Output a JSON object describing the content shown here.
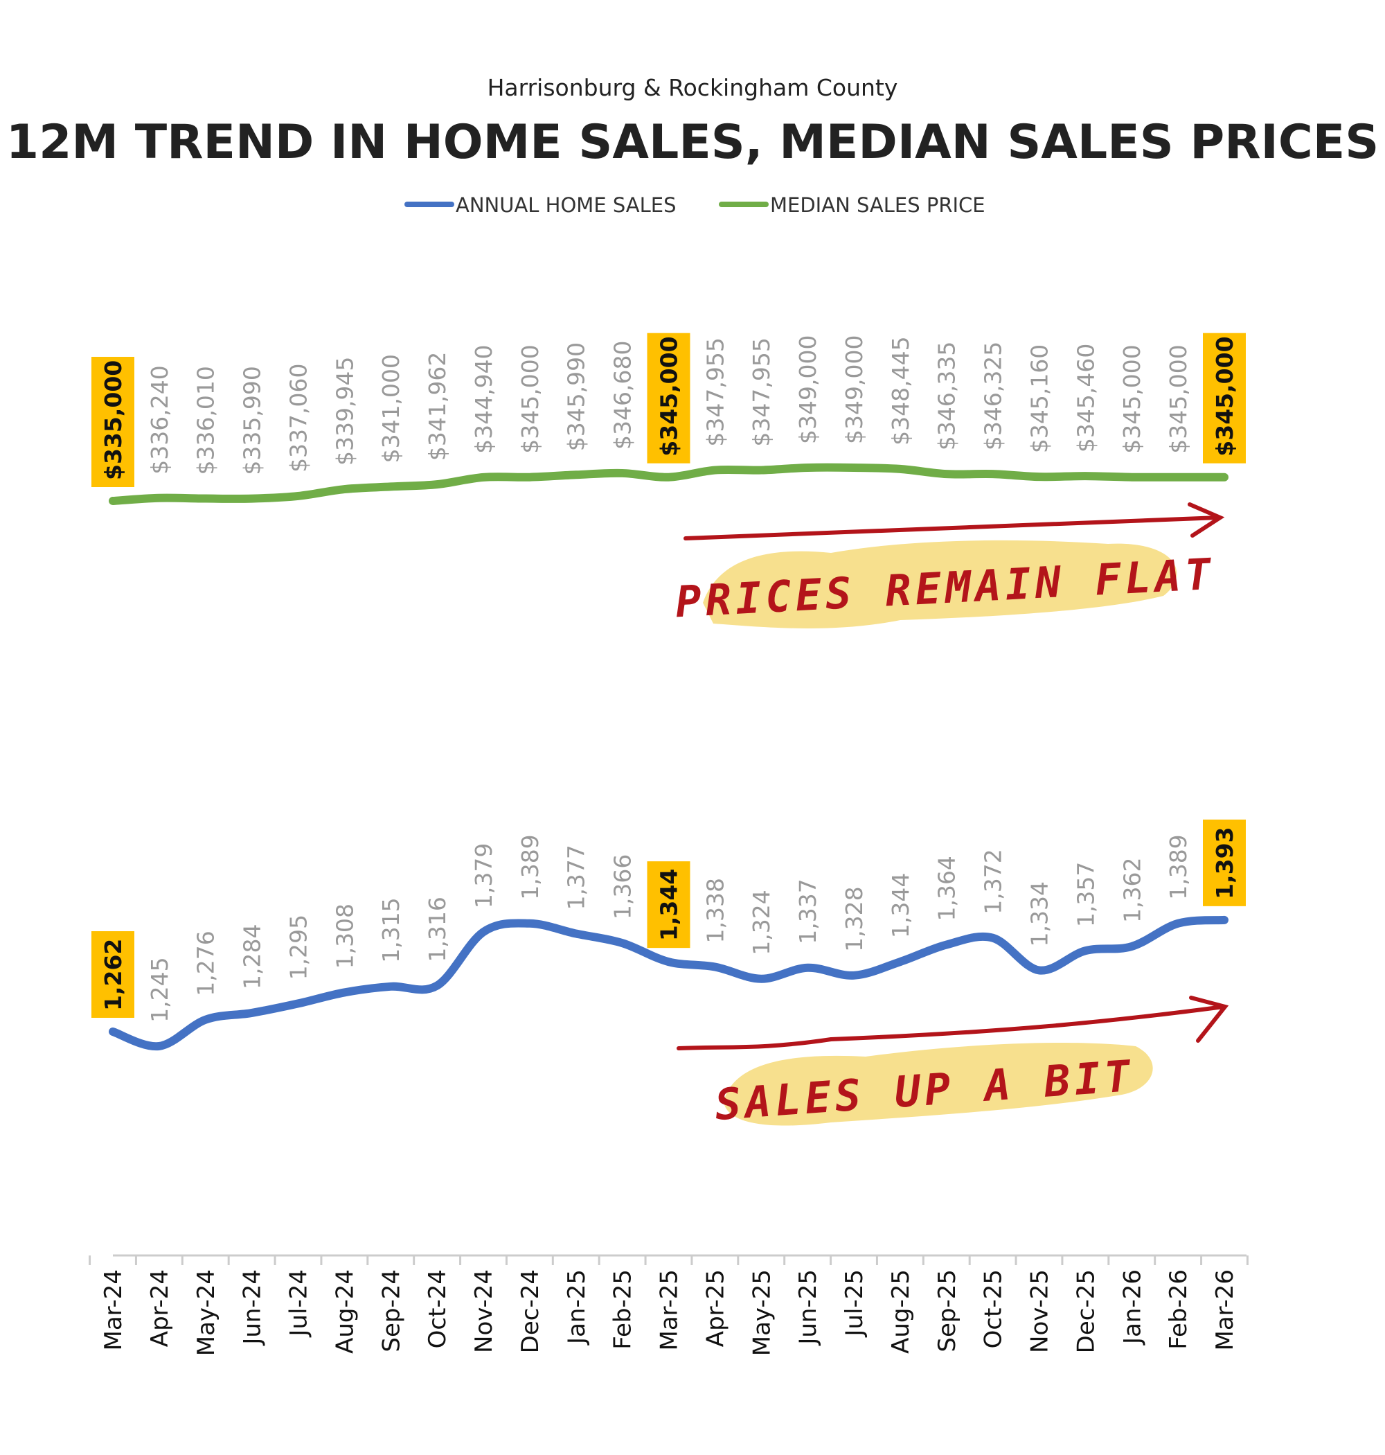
{
  "chart_data": {
    "type": "line",
    "subtitle": "Harrisonburg & Rockingham County",
    "title": "12M TREND IN HOME SALES, MEDIAN SALES PRICES",
    "categories": [
      "Mar-24",
      "Apr-24",
      "May-24",
      "Jun-24",
      "Jul-24",
      "Aug-24",
      "Sep-24",
      "Oct-24",
      "Nov-24",
      "Dec-24",
      "Jan-25",
      "Feb-25",
      "Mar-25",
      "Apr-25",
      "May-25",
      "Jun-25",
      "Jul-25",
      "Aug-25",
      "Sep-25",
      "Oct-25",
      "Nov-25",
      "Dec-25",
      "Jan-26",
      "Feb-26",
      "Mar-26"
    ],
    "series": [
      {
        "name": "ANNUAL HOME SALES",
        "color": "#4472C4",
        "values": [
          1262,
          1245,
          1276,
          1284,
          1295,
          1308,
          1315,
          1316,
          1379,
          1389,
          1377,
          1366,
          1344,
          1338,
          1324,
          1337,
          1328,
          1344,
          1364,
          1372,
          1334,
          1357,
          1362,
          1389,
          1393
        ],
        "labels": [
          "1,262",
          "1,245",
          "1,276",
          "1,284",
          "1,295",
          "1,308",
          "1,315",
          "1,316",
          "1,379",
          "1,389",
          "1,377",
          "1,366",
          "1,344",
          "1,338",
          "1,324",
          "1,337",
          "1,328",
          "1,344",
          "1,364",
          "1,372",
          "1,334",
          "1,357",
          "1,362",
          "1,389",
          "1,393"
        ]
      },
      {
        "name": "MEDIAN SALES PRICE",
        "color": "#70AD47",
        "values": [
          335000,
          336240,
          336010,
          335990,
          337060,
          339945,
          341000,
          341962,
          344940,
          345000,
          345990,
          346680,
          345000,
          347955,
          347955,
          349000,
          349000,
          348445,
          346335,
          346325,
          345160,
          345460,
          345000,
          345000,
          345000
        ],
        "labels": [
          "$335,000",
          "$336,240",
          "$336,010",
          "$335,990",
          "$337,060",
          "$339,945",
          "$341,000",
          "$341,962",
          "$344,940",
          "$345,000",
          "$345,990",
          "$346,680",
          "$345,000",
          "$347,955",
          "$347,955",
          "$349,000",
          "$349,000",
          "$348,445",
          "$346,335",
          "$346,325",
          "$345,160",
          "$345,460",
          "$345,000",
          "$345,000",
          "$345,000"
        ]
      }
    ],
    "highlighted_indices": [
      0,
      12,
      24
    ],
    "highlight_color": "#FFC000",
    "legend": "top-center",
    "grid": false,
    "annotations": [
      {
        "text": "PRICES REMAIN FLAT",
        "target": "MEDIAN SALES PRICE"
      },
      {
        "text": "SALES UP A BIT",
        "target": "ANNUAL HOME SALES"
      }
    ],
    "annotation_color": "#B3141A",
    "annotation_highlight": "#F7E08E"
  }
}
